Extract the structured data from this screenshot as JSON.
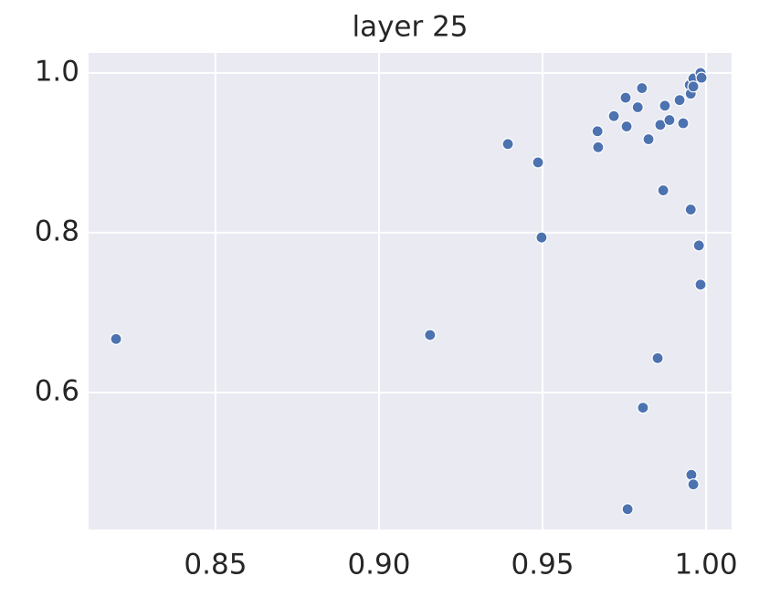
{
  "chart_data": {
    "type": "scatter",
    "title": "layer 25",
    "x": [
      0.8196,
      0.9156,
      0.9394,
      0.9486,
      0.9497,
      0.9668,
      0.967,
      0.9718,
      0.9754,
      0.9757,
      0.9791,
      0.9804,
      0.9824,
      0.986,
      0.9874,
      0.9869,
      0.9888,
      0.9919,
      0.993,
      0.995,
      0.9953,
      0.9961,
      0.9961,
      0.9983,
      0.9986,
      0.9953,
      0.9978,
      0.9983,
      0.9852,
      0.9807,
      0.9955,
      0.9961,
      0.976
    ],
    "values": [
      0.667,
      0.672,
      0.911,
      0.888,
      0.794,
      0.927,
      0.907,
      0.946,
      0.969,
      0.933,
      0.957,
      0.981,
      0.917,
      0.935,
      0.959,
      0.853,
      0.941,
      0.966,
      0.937,
      0.985,
      0.974,
      0.993,
      0.983,
      1.0,
      0.994,
      0.829,
      0.784,
      0.735,
      0.643,
      0.581,
      0.497,
      0.485,
      0.454
    ],
    "color": "#4c72b0",
    "xlim": [
      0.8112,
      1.0078
    ],
    "ylim": [
      0.4286,
      1.025
    ],
    "xticks": [
      0.85,
      {
        "value": 0.9,
        "label": "0.90"
      },
      0.95,
      {
        "value": 1.0,
        "label": "1.00"
      }
    ],
    "yticks": [
      0.6,
      0.8,
      {
        "value": 1.0,
        "label": "1.0"
      }
    ],
    "grid": true
  }
}
